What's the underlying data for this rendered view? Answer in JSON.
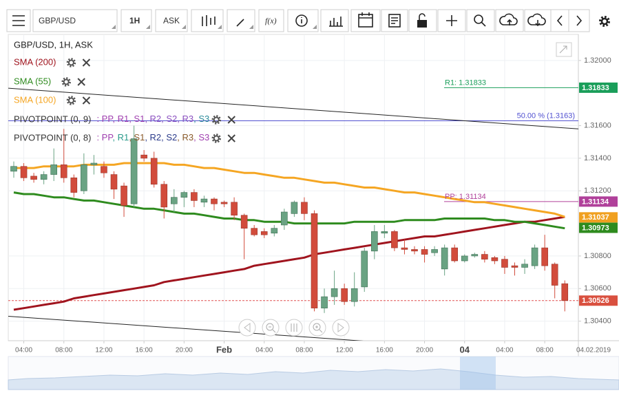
{
  "toolbar": {
    "symbol": "GBP/USD",
    "interval": "1H",
    "price_type": "ASK",
    "function": "f(x)"
  },
  "chart_data": {
    "type": "candlestick",
    "title": "GBP/USD, 1H, ASK",
    "x": [
      null,
      "04:00",
      null,
      null,
      null,
      "08:00",
      null,
      null,
      null,
      "12:00",
      null,
      null,
      null,
      "16:00",
      null,
      null,
      null,
      "20:00",
      null,
      null,
      null,
      "Feb",
      null,
      null,
      null,
      "04:00",
      null,
      null,
      null,
      "08:00",
      null,
      null,
      null,
      "12:00",
      null,
      null,
      null,
      "16:00",
      null,
      null,
      null,
      "20:00",
      null,
      null,
      null,
      "04",
      null,
      null,
      null,
      "04:00",
      null,
      null,
      null,
      "08:00",
      null,
      null
    ],
    "date_label": "04.02.2019",
    "up_color": "#6aa383",
    "down_color": "#d24c3c",
    "candles": [
      {
        "open": 1.3132,
        "high": 1.3138,
        "low": 1.3128,
        "close": 1.3135
      },
      {
        "open": 1.3135,
        "high": 1.3137,
        "low": 1.3126,
        "close": 1.3128
      },
      {
        "open": 1.3129,
        "high": 1.3131,
        "low": 1.3125,
        "close": 1.3127
      },
      {
        "open": 1.3127,
        "high": 1.3132,
        "low": 1.3124,
        "close": 1.313
      },
      {
        "open": 1.313,
        "high": 1.3146,
        "low": 1.3126,
        "close": 1.3136
      },
      {
        "open": 1.3136,
        "high": 1.3158,
        "low": 1.3125,
        "close": 1.3128
      },
      {
        "open": 1.3128,
        "high": 1.313,
        "low": 1.3116,
        "close": 1.3119
      },
      {
        "open": 1.312,
        "high": 1.3143,
        "low": 1.3118,
        "close": 1.3136
      },
      {
        "open": 1.3136,
        "high": 1.3142,
        "low": 1.313,
        "close": 1.3137
      },
      {
        "open": 1.3135,
        "high": 1.3138,
        "low": 1.3128,
        "close": 1.3131
      },
      {
        "open": 1.313,
        "high": 1.3132,
        "low": 1.3115,
        "close": 1.3121
      },
      {
        "open": 1.3123,
        "high": 1.3125,
        "low": 1.3104,
        "close": 1.3111
      },
      {
        "open": 1.3112,
        "high": 1.316,
        "low": 1.311,
        "close": 1.3152
      },
      {
        "open": 1.3142,
        "high": 1.3145,
        "low": 1.3138,
        "close": 1.314
      },
      {
        "open": 1.314,
        "high": 1.3144,
        "low": 1.3122,
        "close": 1.3124
      },
      {
        "open": 1.3124,
        "high": 1.3126,
        "low": 1.3103,
        "close": 1.311
      },
      {
        "open": 1.3112,
        "high": 1.3121,
        "low": 1.3107,
        "close": 1.3116
      },
      {
        "open": 1.3116,
        "high": 1.312,
        "low": 1.311,
        "close": 1.3119
      },
      {
        "open": 1.3119,
        "high": 1.3121,
        "low": 1.311,
        "close": 1.3114
      },
      {
        "open": 1.3113,
        "high": 1.3117,
        "low": 1.311,
        "close": 1.3115
      },
      {
        "open": 1.3115,
        "high": 1.3116,
        "low": 1.3108,
        "close": 1.3112
      },
      {
        "open": 1.3113,
        "high": 1.3114,
        "low": 1.311,
        "close": 1.3112
      },
      {
        "open": 1.3113,
        "high": 1.3116,
        "low": 1.3102,
        "close": 1.3105
      },
      {
        "open": 1.3105,
        "high": 1.3106,
        "low": 1.3078,
        "close": 1.3097
      },
      {
        "open": 1.3097,
        "high": 1.3099,
        "low": 1.3092,
        "close": 1.3093
      },
      {
        "open": 1.3095,
        "high": 1.3097,
        "low": 1.3091,
        "close": 1.3093
      },
      {
        "open": 1.3094,
        "high": 1.3099,
        "low": 1.3092,
        "close": 1.3097
      },
      {
        "open": 1.3099,
        "high": 1.3109,
        "low": 1.3096,
        "close": 1.3107
      },
      {
        "open": 1.3106,
        "high": 1.3114,
        "low": 1.3104,
        "close": 1.3113
      },
      {
        "open": 1.3113,
        "high": 1.3116,
        "low": 1.3102,
        "close": 1.3106
      },
      {
        "open": 1.3106,
        "high": 1.3108,
        "low": 1.3046,
        "close": 1.3048
      },
      {
        "open": 1.3048,
        "high": 1.306,
        "low": 1.3045,
        "close": 1.3055
      },
      {
        "open": 1.3055,
        "high": 1.3071,
        "low": 1.305,
        "close": 1.306
      },
      {
        "open": 1.306,
        "high": 1.3063,
        "low": 1.305,
        "close": 1.3052
      },
      {
        "open": 1.3052,
        "high": 1.307,
        "low": 1.3049,
        "close": 1.306
      },
      {
        "open": 1.3061,
        "high": 1.3085,
        "low": 1.3058,
        "close": 1.3083
      },
      {
        "open": 1.3083,
        "high": 1.3099,
        "low": 1.3078,
        "close": 1.3095
      },
      {
        "open": 1.3094,
        "high": 1.3099,
        "low": 1.3091,
        "close": 1.3095
      },
      {
        "open": 1.3095,
        "high": 1.3096,
        "low": 1.3083,
        "close": 1.3085
      },
      {
        "open": 1.3085,
        "high": 1.309,
        "low": 1.3081,
        "close": 1.3084
      },
      {
        "open": 1.3084,
        "high": 1.3086,
        "low": 1.3081,
        "close": 1.3083
      },
      {
        "open": 1.3084,
        "high": 1.3086,
        "low": 1.3076,
        "close": 1.3081
      },
      {
        "open": 1.3082,
        "high": 1.3086,
        "low": 1.308,
        "close": 1.3084
      },
      {
        "open": 1.3072,
        "high": 1.3087,
        "low": 1.3068,
        "close": 1.3085
      },
      {
        "open": 1.3085,
        "high": 1.3087,
        "low": 1.3076,
        "close": 1.3077
      },
      {
        "open": 1.3077,
        "high": 1.3081,
        "low": 1.3076,
        "close": 1.308
      },
      {
        "open": 1.308,
        "high": 1.3082,
        "low": 1.3079,
        "close": 1.3081
      },
      {
        "open": 1.3081,
        "high": 1.3083,
        "low": 1.3076,
        "close": 1.3078
      },
      {
        "open": 1.3079,
        "high": 1.308,
        "low": 1.3075,
        "close": 1.3077
      },
      {
        "open": 1.3078,
        "high": 1.308,
        "low": 1.3069,
        "close": 1.3073
      },
      {
        "open": 1.3074,
        "high": 1.3076,
        "low": 1.3068,
        "close": 1.3073
      },
      {
        "open": 1.3073,
        "high": 1.3078,
        "low": 1.3069,
        "close": 1.3075
      },
      {
        "open": 1.3074,
        "high": 1.3087,
        "low": 1.3072,
        "close": 1.3085
      },
      {
        "open": 1.3085,
        "high": 1.3093,
        "low": 1.3071,
        "close": 1.3074
      },
      {
        "open": 1.3075,
        "high": 1.3076,
        "low": 1.3054,
        "close": 1.3062
      },
      {
        "open": 1.3063,
        "high": 1.3065,
        "low": 1.3046,
        "close": 1.30526
      }
    ],
    "series": [
      {
        "name": "SMA (200)",
        "color": "#a0141e",
        "values": [
          1.3047,
          1.3048,
          1.3049,
          1.305,
          1.3051,
          1.3052,
          1.3054,
          1.3055,
          1.3056,
          1.3057,
          1.3058,
          1.3059,
          1.306,
          1.3061,
          1.3062,
          1.3064,
          1.3065,
          1.3066,
          1.3067,
          1.3068,
          1.3069,
          1.307,
          1.3071,
          1.3072,
          1.3074,
          1.3075,
          1.3076,
          1.3077,
          1.3078,
          1.3079,
          1.3081,
          1.3082,
          1.3083,
          1.3084,
          1.3085,
          1.3086,
          1.3087,
          1.3088,
          1.3089,
          1.309,
          1.3091,
          1.3092,
          1.3092,
          1.3093,
          1.3094,
          1.3095,
          1.3096,
          1.3097,
          1.3098,
          1.3099,
          1.31,
          1.3101,
          1.3101,
          1.3102,
          1.3103,
          1.3104
        ]
      },
      {
        "name": "SMA (55)",
        "color": "#2e8b1e",
        "values": [
          1.3119,
          1.3118,
          1.3118,
          1.3117,
          1.3116,
          1.3116,
          1.3115,
          1.3114,
          1.3114,
          1.3113,
          1.3112,
          1.3111,
          1.311,
          1.3109,
          1.3109,
          1.3108,
          1.3107,
          1.3106,
          1.3106,
          1.3105,
          1.3104,
          1.3103,
          1.3103,
          1.3102,
          1.3102,
          1.3101,
          1.3101,
          1.3101,
          1.31,
          1.31,
          1.31,
          1.31,
          1.31,
          1.31,
          1.3101,
          1.3101,
          1.3101,
          1.3101,
          1.3101,
          1.3102,
          1.3102,
          1.3102,
          1.3102,
          1.3103,
          1.3103,
          1.3103,
          1.3103,
          1.3103,
          1.3102,
          1.3102,
          1.3101,
          1.3101,
          1.31,
          1.3099,
          1.3098,
          1.3097
        ]
      },
      {
        "name": "SMA (100)",
        "color": "#f5a623",
        "values": [
          1.3134,
          1.3134,
          1.3134,
          1.3135,
          1.3135,
          1.3135,
          1.3135,
          1.3136,
          1.3136,
          1.3136,
          1.3136,
          1.3137,
          1.3137,
          1.3137,
          1.3137,
          1.3137,
          1.3136,
          1.3136,
          1.3135,
          1.3134,
          1.3134,
          1.3133,
          1.3132,
          1.3131,
          1.3131,
          1.313,
          1.3129,
          1.3128,
          1.3128,
          1.3127,
          1.3126,
          1.3125,
          1.3125,
          1.3124,
          1.3123,
          1.3122,
          1.3122,
          1.3121,
          1.312,
          1.3119,
          1.3119,
          1.3118,
          1.3117,
          1.3116,
          1.3115,
          1.3114,
          1.3113,
          1.3113,
          1.3112,
          1.3111,
          1.311,
          1.3109,
          1.3108,
          1.3107,
          1.3106,
          1.3104
        ]
      }
    ],
    "pivots": [
      {
        "name": "PIVOTPOINT (0, 9)",
        "parts": [
          ": PP",
          ", R1",
          ", S1",
          ", R2",
          ", S2",
          ", R3",
          ", S3"
        ],
        "colors": [
          "#a040b0",
          "#a040b0",
          "#a040b0",
          "#8a4fc0",
          "#8a4fc0",
          "#8a4fc0",
          "#2a8a9a"
        ]
      },
      {
        "name": "PIVOTPOINT (0, 8)",
        "parts": [
          ": PP",
          ", R1",
          ", S1",
          ", R2",
          ", S2",
          ", R3",
          ", S3"
        ],
        "colors": [
          "#a040b0",
          "#2a9a8a",
          "#8a5a2a",
          "#2a3a8a",
          "#2a3a8a",
          "#8a5a2a",
          "#a040b0"
        ]
      }
    ],
    "levels": [
      {
        "value": 1.31833,
        "label": "R1: 1.31833",
        "color": "#1a9e5a"
      },
      {
        "value": 1.3163,
        "label": "50.00 % (1.3163)",
        "color": "#5050d0"
      },
      {
        "value": 1.31134,
        "label": "PP: 1.31134",
        "color": "#b0409a"
      },
      {
        "value": 1.30526,
        "color": "#e05050",
        "dashed": true
      }
    ],
    "trendlines": [
      {
        "start": 1.3183,
        "end": 1.3158,
        "color": "#222"
      },
      {
        "start": 1.3043,
        "end": 1.30186,
        "color": "#222"
      }
    ],
    "price_tags": [
      {
        "value": 1.31833,
        "label": "1.31833",
        "color": "#1a9e5a"
      },
      {
        "value": 1.31134,
        "label": "1.31134",
        "color": "#b0409a"
      },
      {
        "value": 1.31037,
        "label": "1.31037",
        "color": "#f0a020"
      },
      {
        "value": 1.30973,
        "label": "1.30973",
        "color": "#2e8b1e"
      },
      {
        "value": 1.30526,
        "label": "1.30526",
        "color": "#d9503f"
      }
    ],
    "ylim": [
      1.3028,
      1.3216
    ],
    "yticks": [
      {
        "value": 1.304,
        "label": "1.30400"
      },
      {
        "value": 1.306,
        "label": "1.30600"
      },
      {
        "value": 1.308,
        "label": "1.30800"
      },
      {
        "value": 1.312,
        "label": "1.31200"
      },
      {
        "value": 1.314,
        "label": "1.31400"
      },
      {
        "value": 1.316,
        "label": "1.31600"
      },
      {
        "value": 1.32,
        "label": "1.32000"
      }
    ],
    "grid": true
  }
}
